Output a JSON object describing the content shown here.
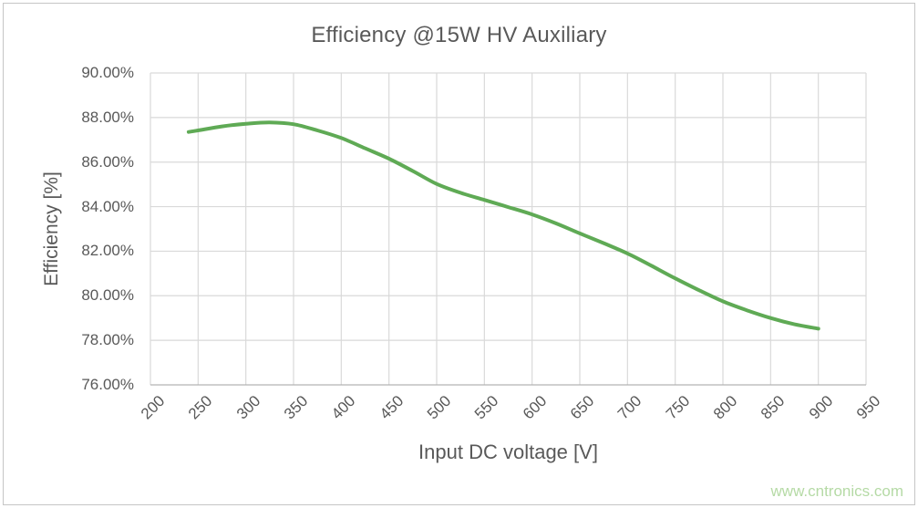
{
  "page": {
    "watermark": "www.cntronics.com"
  },
  "chart_data": {
    "type": "line",
    "title": "Efficiency @15W HV Auxiliary",
    "xlabel": "Input DC voltage [V]",
    "ylabel": "Efficiency [%]",
    "xlim": [
      200,
      950
    ],
    "ylim": [
      76,
      90
    ],
    "grid": true,
    "legend": "none",
    "x_ticks": [
      200,
      250,
      300,
      350,
      400,
      450,
      500,
      550,
      600,
      650,
      700,
      750,
      800,
      850,
      900,
      950
    ],
    "x_tick_labels": [
      "200",
      "250",
      "300",
      "350",
      "400",
      "450",
      "500",
      "550",
      "600",
      "650",
      "700",
      "750",
      "800",
      "850",
      "900",
      "950"
    ],
    "y_ticks": [
      90,
      88,
      86,
      84,
      82,
      80,
      78,
      76
    ],
    "y_tick_labels": [
      "90.00%",
      "88.00%",
      "86.00%",
      "84.00%",
      "82.00%",
      "80.00%",
      "78.00%",
      "76.00%"
    ],
    "colors": {
      "line": "#5faa55",
      "grid": "#d9d9d9",
      "axis": "#b3b3b3",
      "text": "#595959",
      "watermark": "#b5daa5"
    },
    "series": [
      {
        "name": "efficiency",
        "points": [
          [
            240,
            87.35
          ],
          [
            250,
            87.42
          ],
          [
            275,
            87.6
          ],
          [
            300,
            87.72
          ],
          [
            325,
            87.78
          ],
          [
            350,
            87.7
          ],
          [
            375,
            87.42
          ],
          [
            400,
            87.08
          ],
          [
            425,
            86.62
          ],
          [
            450,
            86.15
          ],
          [
            475,
            85.6
          ],
          [
            500,
            85.02
          ],
          [
            525,
            84.62
          ],
          [
            550,
            84.3
          ],
          [
            575,
            83.98
          ],
          [
            600,
            83.65
          ],
          [
            625,
            83.25
          ],
          [
            650,
            82.8
          ],
          [
            675,
            82.36
          ],
          [
            700,
            81.9
          ],
          [
            725,
            81.35
          ],
          [
            750,
            80.78
          ],
          [
            775,
            80.25
          ],
          [
            800,
            79.75
          ],
          [
            825,
            79.35
          ],
          [
            850,
            79.0
          ],
          [
            875,
            78.72
          ],
          [
            900,
            78.52
          ]
        ]
      }
    ]
  }
}
